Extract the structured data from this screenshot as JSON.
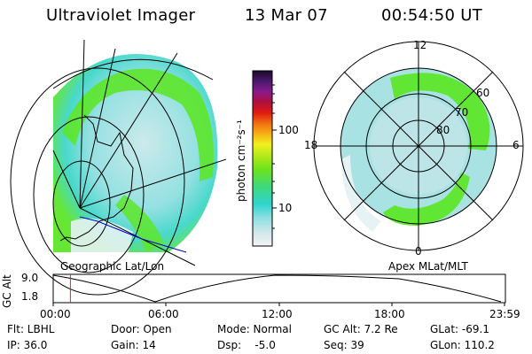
{
  "header": {
    "instrument": "Ultraviolet Imager",
    "date": "13 Mar 07",
    "time": "00:54:50 UT"
  },
  "left_panel": {
    "label": "Geographic Lat/Lon"
  },
  "right_panel": {
    "label": "Apex MLat/MLT",
    "mlt_labels": [
      "12",
      "18",
      "6",
      "0"
    ],
    "lat_labels": [
      "60",
      "70",
      "80"
    ]
  },
  "colorbar": {
    "unit_label": "photon cm⁻²s⁻¹",
    "ticks": [
      "100",
      "10"
    ]
  },
  "altitude_plot": {
    "y_label": "GC Alt",
    "y_ticks": [
      "9.0",
      "1.8"
    ],
    "x_ticks": [
      "00:00",
      "06:00",
      "12:00",
      "18:00",
      "23:59"
    ],
    "current_time_fraction": 0.038
  },
  "footer": {
    "filter": "Flt: LBHL",
    "ip": "IP: 36.0",
    "door": "Door: Open",
    "gain": "Gain: 14",
    "mode": "Mode: Normal",
    "dsp": "Dsp:    -5.0",
    "gc_alt": "GC Alt: 7.2 Re",
    "seq": "Seq: 39",
    "glat": "GLat: -69.1",
    "glon": "GLon: 110.2"
  },
  "colors": {
    "aurora_bright": "#5ee62a",
    "aurora_mid": "#2fd6c9",
    "aurora_dim": "#a8dde0",
    "cursor": "#e02020",
    "coast": "#0000cc"
  }
}
